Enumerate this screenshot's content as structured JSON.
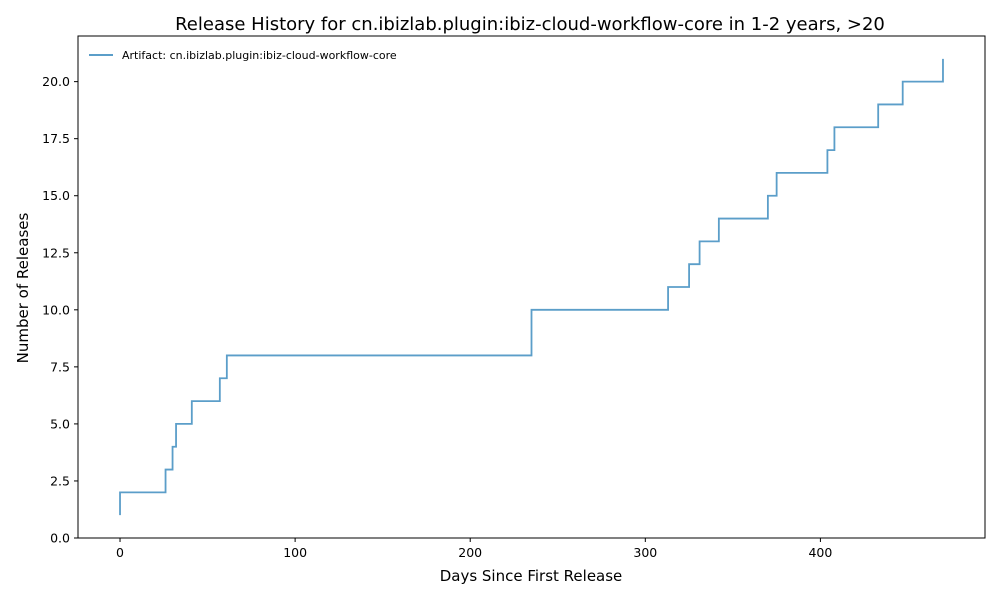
{
  "chart_data": {
    "type": "line",
    "step": true,
    "title": "Release History for cn.ibizlab.plugin:ibiz-cloud-workflow-core in 1-2 years, >20",
    "xlabel": "Days Since First Release",
    "ylabel": "Number of Releases",
    "xlim": [
      -24,
      494
    ],
    "ylim": [
      0,
      22
    ],
    "xticks": [
      0,
      100,
      200,
      300,
      400
    ],
    "yticks": [
      0.0,
      2.5,
      5.0,
      7.5,
      10.0,
      12.5,
      15.0,
      17.5,
      20.0
    ],
    "ytick_labels": [
      "0.0",
      "2.5",
      "5.0",
      "7.5",
      "10.0",
      "12.5",
      "15.0",
      "17.5",
      "20.0"
    ],
    "grid": false,
    "legend": "top-left",
    "series": [
      {
        "name": "Artifact: cn.ibizlab.plugin:ibiz-cloud-workflow-core",
        "color": "#5b9ec9",
        "points": [
          [
            0,
            1
          ],
          [
            0,
            2
          ],
          [
            26,
            3
          ],
          [
            30,
            4
          ],
          [
            32,
            5
          ],
          [
            41,
            6
          ],
          [
            57,
            7
          ],
          [
            61,
            8
          ],
          [
            235,
            10
          ],
          [
            313,
            11
          ],
          [
            325,
            12
          ],
          [
            331,
            13
          ],
          [
            342,
            14
          ],
          [
            370,
            15
          ],
          [
            375,
            16
          ],
          [
            404,
            17
          ],
          [
            408,
            18
          ],
          [
            433,
            19
          ],
          [
            447,
            20
          ],
          [
            470,
            21
          ]
        ]
      }
    ]
  }
}
